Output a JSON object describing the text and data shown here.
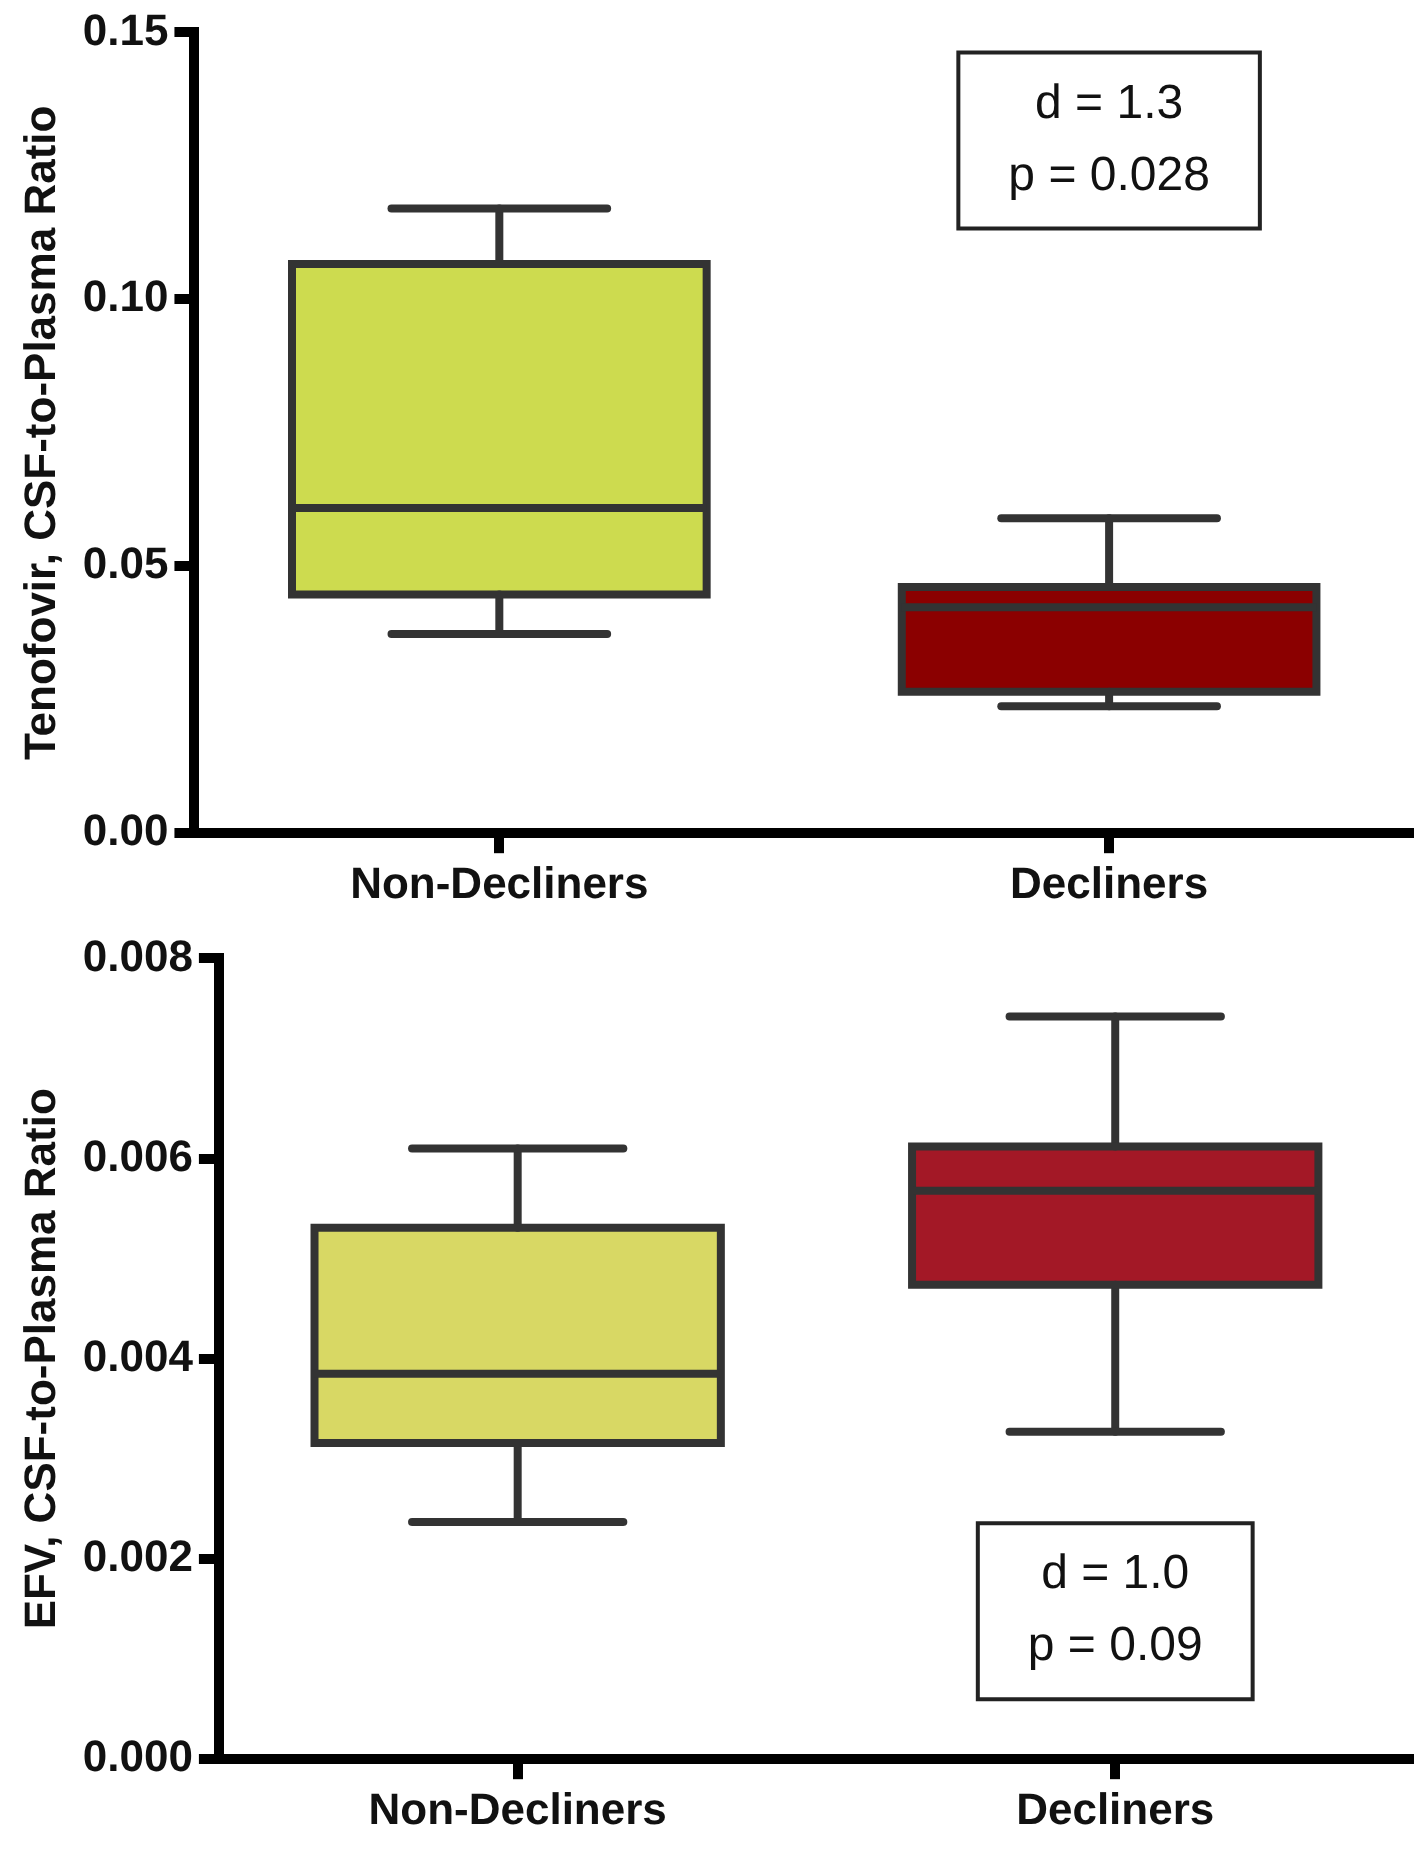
{
  "chart_data": [
    {
      "type": "box",
      "ylabel": "Tenofovir, CSF-to-Plasma Ratio",
      "categories": [
        "Non-Decliners",
        "Decliners"
      ],
      "colors": [
        "#cddb4f",
        "#8b0000"
      ],
      "boxes": [
        {
          "low": 0.0373,
          "q1": 0.0447,
          "median": 0.0609,
          "q3": 0.1066,
          "high": 0.117
        },
        {
          "low": 0.0238,
          "q1": 0.0265,
          "median": 0.0423,
          "q3": 0.0461,
          "high": 0.059
        }
      ],
      "ylim": [
        0,
        0.15
      ],
      "yticks": [
        {
          "value": 0,
          "label": "0.00"
        },
        {
          "value": 0.05,
          "label": "0.05"
        },
        {
          "value": 0.1,
          "label": "0.10"
        },
        {
          "value": 0.15,
          "label": "0.15"
        }
      ],
      "annotations": [
        "d = 1.3\np = 0.028"
      ]
    },
    {
      "type": "box",
      "ylabel": "EFV, CSF-to-Plasma Ratio",
      "categories": [
        "Non-Decliners",
        "Decliners"
      ],
      "colors": [
        "#d8d864",
        "#a31826"
      ],
      "boxes": [
        {
          "low": 0.00237,
          "q1": 0.00316,
          "median": 0.00385,
          "q3": 0.00531,
          "high": 0.0061
        },
        {
          "low": 0.00327,
          "q1": 0.00474,
          "median": 0.00568,
          "q3": 0.00612,
          "high": 0.00742
        }
      ],
      "ylim": [
        0,
        0.008
      ],
      "yticks": [
        {
          "value": 0,
          "label": "0.000"
        },
        {
          "value": 0.002,
          "label": "0.002"
        },
        {
          "value": 0.004,
          "label": "0.004"
        },
        {
          "value": 0.006,
          "label": "0.006"
        },
        {
          "value": 0.008,
          "label": "0.008"
        }
      ],
      "annotations": [
        "d = 1.0\np = 0.09"
      ]
    }
  ]
}
